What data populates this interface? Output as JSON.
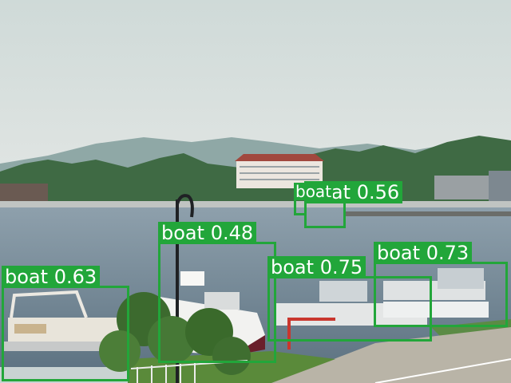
{
  "detection_color": "#22a63a",
  "detections": [
    {
      "label": "boat",
      "score": "0.63"
    },
    {
      "label": "boat",
      "score": "0.48"
    },
    {
      "label": "boat",
      "score": "0.75"
    },
    {
      "label": "boat",
      "score": "0.73"
    },
    {
      "label": "boat",
      "score": "0.56"
    },
    {
      "label": "boat",
      "score": ""
    }
  ]
}
